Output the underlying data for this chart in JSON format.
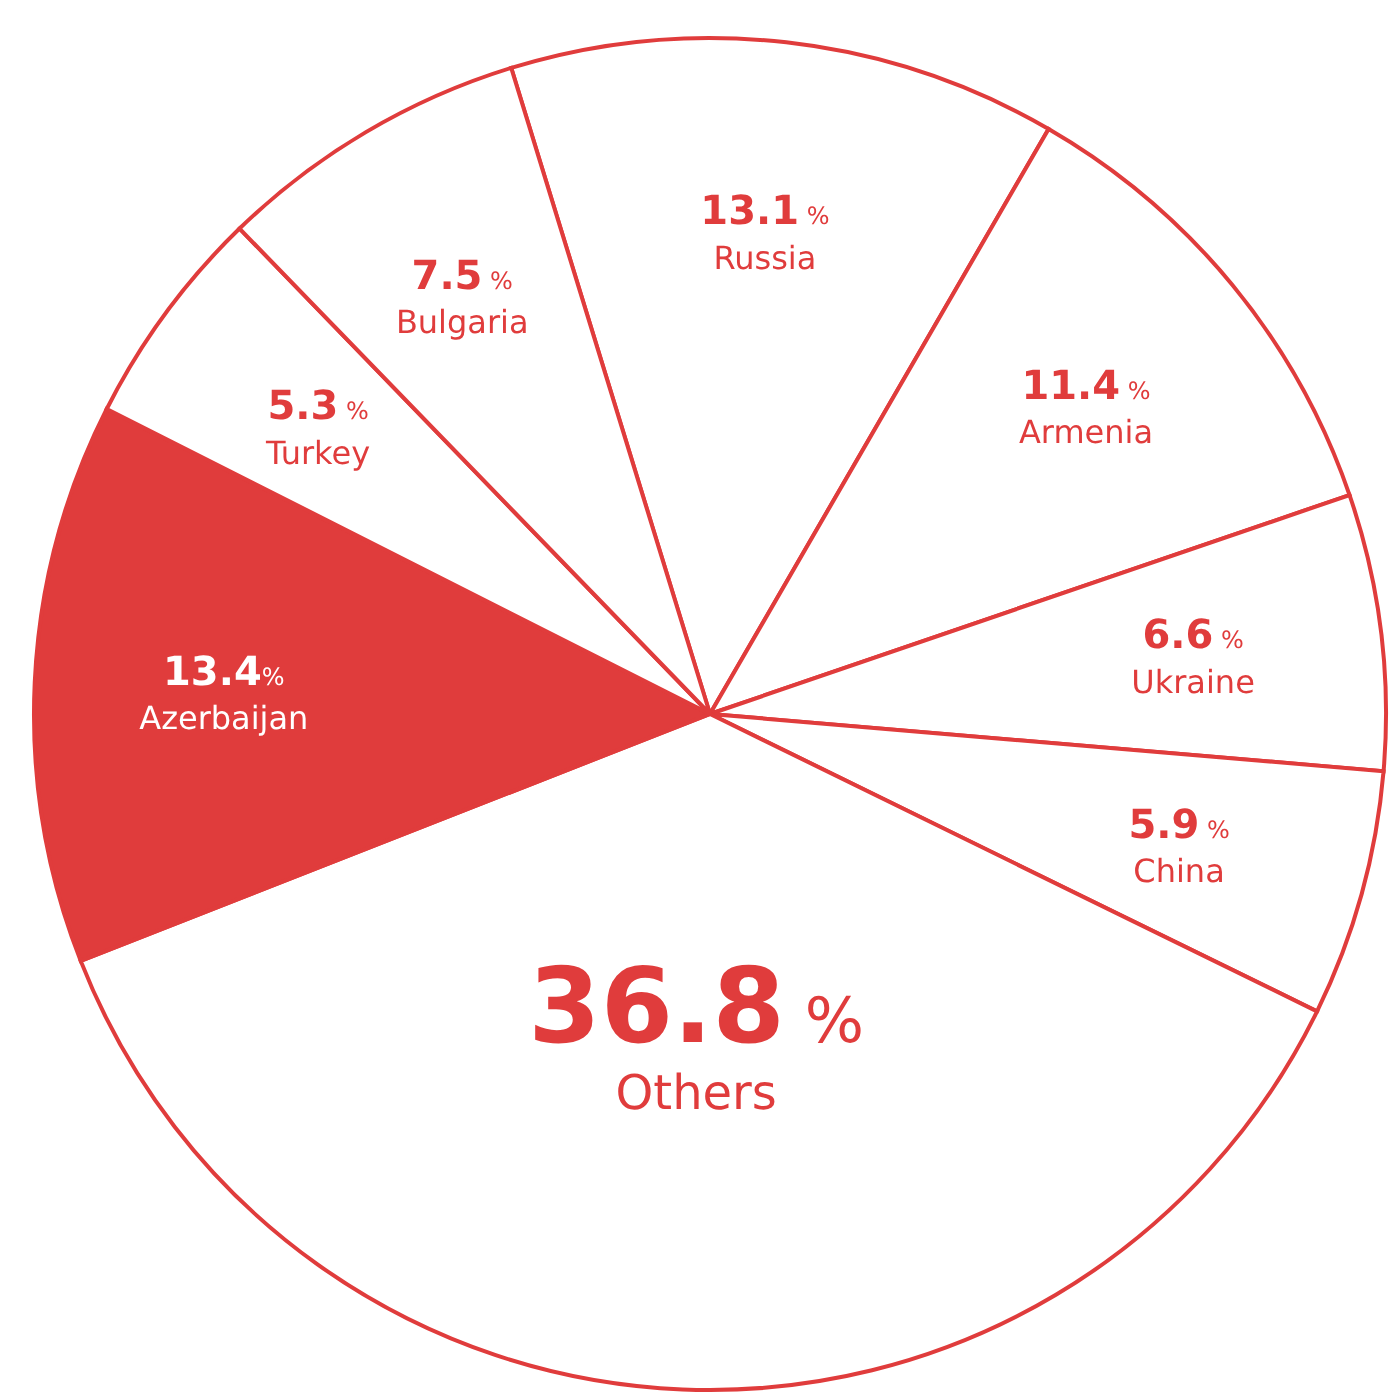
{
  "chart_data": {
    "type": "pie",
    "categories": [
      "Russia",
      "Armenia",
      "Ukraine",
      "China",
      "Others",
      "Azerbaijan",
      "Turkey",
      "Bulgaria"
    ],
    "values": [
      13.1,
      11.4,
      6.6,
      5.9,
      36.8,
      13.4,
      5.3,
      7.5
    ],
    "colors": [
      "#ffffff",
      "#ffffff",
      "#ffffff",
      "#ffffff",
      "#ffffff",
      "#e03c3c",
      "#ffffff",
      "#ffffff"
    ],
    "value_labels": [
      "13.1 %",
      "11.4 %",
      "6.6 %",
      "5.9 %",
      "36.8 %",
      "13.4%",
      "5.3 %",
      "7.5 %"
    ],
    "legend": false
  }
}
